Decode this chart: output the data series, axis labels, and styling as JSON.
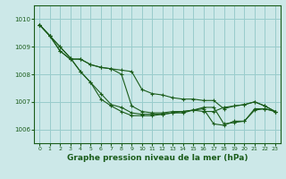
{
  "title": "Graphe pression niveau de la mer (hPa)",
  "bg_color": "#cce8e8",
  "grid_color": "#99cccc",
  "line_color": "#1a5c1a",
  "xlim": [
    -0.5,
    23.5
  ],
  "ylim": [
    1005.5,
    1010.5
  ],
  "yticks": [
    1006,
    1007,
    1008,
    1009,
    1010
  ],
  "xticks": [
    0,
    1,
    2,
    3,
    4,
    5,
    6,
    7,
    8,
    9,
    10,
    11,
    12,
    13,
    14,
    15,
    16,
    17,
    18,
    19,
    20,
    21,
    22,
    23
  ],
  "series": [
    [
      1009.8,
      1009.4,
      1009.0,
      1008.6,
      1008.1,
      1007.7,
      1007.3,
      1006.9,
      1006.8,
      1006.6,
      1006.55,
      1006.55,
      1006.55,
      1006.6,
      1006.6,
      1006.7,
      1006.75,
      1006.2,
      1006.15,
      1006.3,
      1006.3,
      1006.7,
      1006.75,
      1006.65
    ],
    [
      1009.8,
      1009.4,
      1009.0,
      1008.6,
      1008.1,
      1007.7,
      1007.1,
      1006.85,
      1006.65,
      1006.5,
      1006.5,
      1006.5,
      1006.55,
      1006.6,
      1006.65,
      1006.7,
      1006.8,
      1006.8,
      1006.2,
      1006.25,
      1006.3,
      1006.75,
      1006.75,
      1006.65
    ],
    [
      1009.8,
      1009.4,
      1008.85,
      1008.55,
      1008.55,
      1008.35,
      1008.25,
      1008.2,
      1008.15,
      1008.1,
      1007.45,
      1007.3,
      1007.25,
      1007.15,
      1007.1,
      1007.1,
      1007.05,
      1007.05,
      1006.75,
      1006.85,
      1006.9,
      1007.0,
      1006.85,
      1006.65
    ],
    [
      1009.8,
      1009.4,
      1008.85,
      1008.55,
      1008.55,
      1008.35,
      1008.25,
      1008.2,
      1008.0,
      1006.85,
      1006.65,
      1006.6,
      1006.6,
      1006.65,
      1006.65,
      1006.7,
      1006.65,
      1006.65,
      1006.8,
      1006.85,
      1006.9,
      1007.0,
      1006.85,
      1006.65
    ]
  ],
  "ylabel_fontsize": 5.5,
  "xlabel_fontsize": 6.5,
  "marker": "+",
  "markersize": 2.5,
  "linewidth": 0.8
}
